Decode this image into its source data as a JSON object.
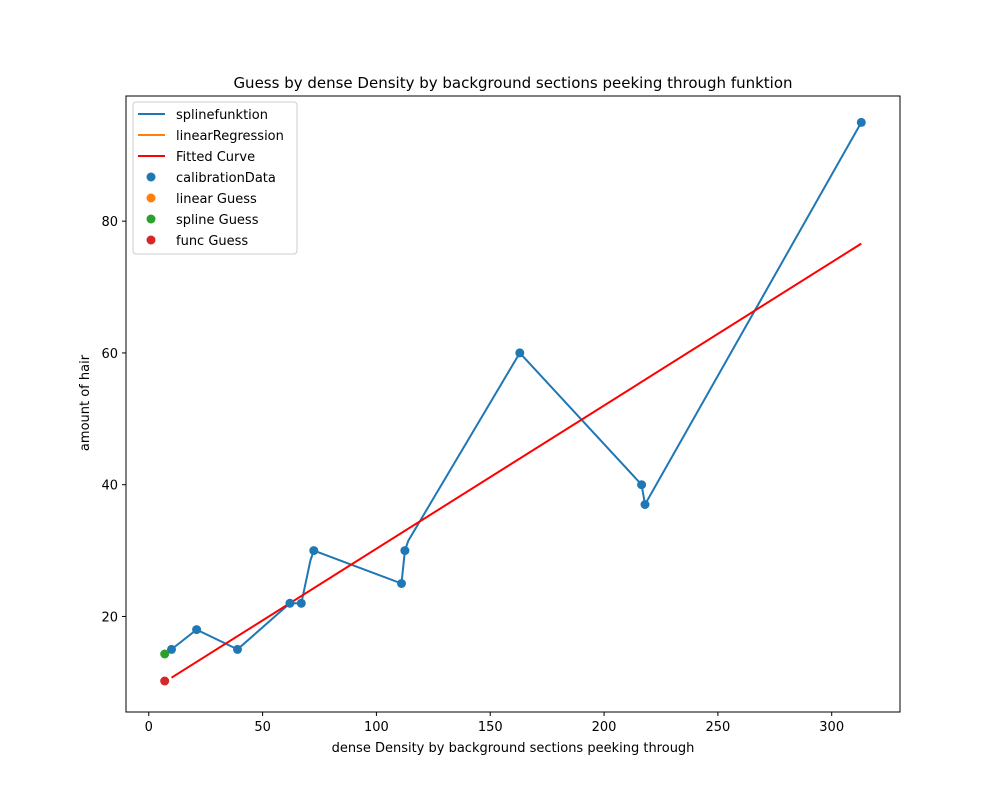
{
  "chart_data": {
    "type": "line",
    "title": "Guess by dense Density by background sections peeking through funktion",
    "xlabel": "dense Density by background sections peeking through",
    "ylabel": "amount of hair",
    "xlim": [
      -10,
      330
    ],
    "ylim": [
      5.5,
      99
    ],
    "xticks": [
      0,
      50,
      100,
      150,
      200,
      250,
      300
    ],
    "yticks": [
      20,
      40,
      60,
      80
    ],
    "grid": false,
    "legend_position": "top-left",
    "legend": [
      "splinefunktion",
      "linearRegression",
      "Fitted Curve",
      "calibrationData",
      "linear Guess",
      "spline Guess",
      "func Guess"
    ],
    "series": [
      {
        "name": "splinefunktion",
        "kind": "line",
        "color": "#1f77b4",
        "x": [
          10,
          21,
          39,
          62,
          67,
          71,
          72.5,
          111,
          112.5,
          114,
          163,
          216.5,
          218,
          313
        ],
        "y": [
          15,
          18,
          15,
          22,
          22,
          28.5,
          30,
          25,
          30,
          31.5,
          60,
          40,
          37,
          95
        ]
      },
      {
        "name": "linearRegression",
        "kind": "line",
        "color": "#ff7f0e",
        "x": [],
        "y": []
      },
      {
        "name": "Fitted Curve",
        "kind": "line",
        "color": "#ff0000",
        "x": [
          10,
          313
        ],
        "y": [
          10.7,
          76.6
        ]
      },
      {
        "name": "calibrationData",
        "kind": "scatter",
        "color": "#1f77b4",
        "x": [
          10,
          21,
          39,
          62,
          67,
          72.5,
          111,
          112.5,
          163,
          216.5,
          218,
          313
        ],
        "y": [
          15,
          18,
          15,
          22,
          22,
          30,
          25,
          30,
          60,
          40,
          37,
          95
        ]
      },
      {
        "name": "linear Guess",
        "kind": "scatter",
        "color": "#ff7f0e",
        "x": [],
        "y": []
      },
      {
        "name": "spline Guess",
        "kind": "scatter",
        "color": "#2ca02c",
        "x": [
          7
        ],
        "y": [
          14.3
        ]
      },
      {
        "name": "func Guess",
        "kind": "scatter",
        "color": "#d62728",
        "x": [
          7
        ],
        "y": [
          10.2
        ]
      }
    ]
  }
}
